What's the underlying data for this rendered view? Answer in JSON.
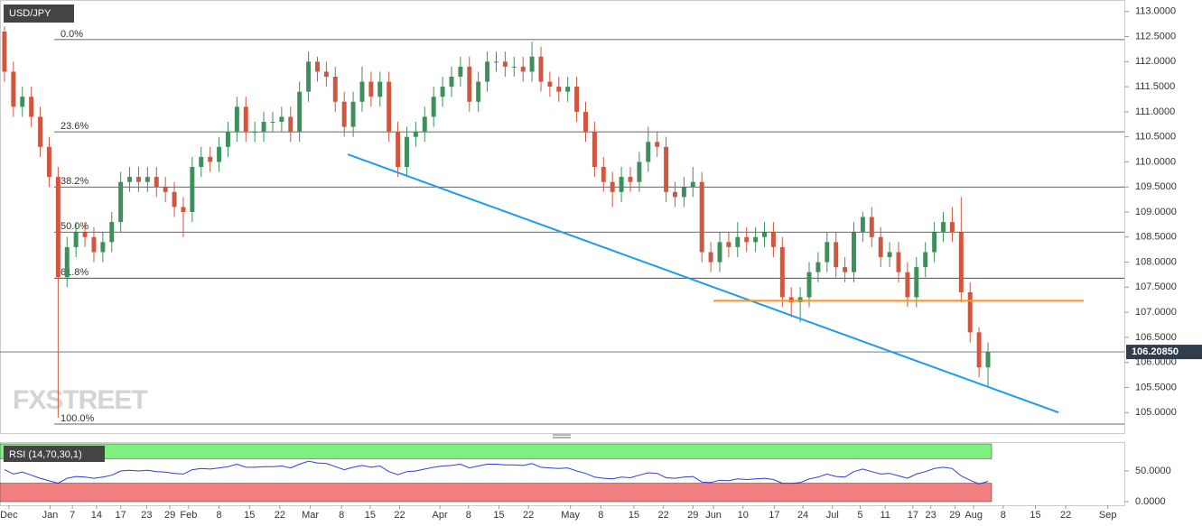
{
  "chart_data": [
    {
      "type": "candlestick",
      "title": "USD/JPY",
      "watermark": "FXSTREET",
      "up_color": "#3d8f5c",
      "down_color": "#d0563f",
      "open": [
        112.6,
        111.8,
        111.1,
        111.3,
        110.9,
        110.3,
        109.7,
        107.7,
        108.3,
        108.6,
        108.5,
        108.2,
        108.4,
        108.8,
        109.6,
        109.7,
        109.6,
        109.7,
        109.5,
        109.4,
        109.1,
        109.0,
        109.9,
        110.1,
        110.0,
        110.3,
        110.6,
        111.1,
        110.6,
        110.6,
        110.8,
        110.8,
        110.9,
        110.6,
        111.4,
        112.0,
        111.8,
        111.7,
        111.2,
        110.7,
        111.2,
        111.6,
        111.3,
        111.6,
        110.6,
        109.9,
        110.5,
        110.6,
        110.9,
        111.3,
        111.5,
        111.7,
        111.9,
        111.2,
        111.6,
        112.0,
        112.0,
        111.9,
        111.9,
        111.8,
        112.1,
        111.6,
        111.5,
        111.4,
        111.5,
        111.0,
        110.6,
        109.9,
        109.6,
        109.4,
        109.7,
        109.6,
        110.0,
        110.4,
        110.3,
        109.4,
        109.3,
        109.5,
        109.6,
        108.2,
        108.0,
        108.4,
        108.3,
        108.5,
        108.4,
        108.5,
        108.6,
        108.3,
        107.3,
        107.2,
        107.3,
        107.8,
        108.0,
        108.4,
        107.9,
        107.8,
        108.6,
        108.9,
        108.5,
        108.1,
        108.2,
        107.8,
        107.3,
        107.9,
        108.2,
        108.6,
        108.8,
        108.6,
        107.4,
        106.6,
        105.9
      ],
      "high": [
        112.7,
        112.0,
        111.5,
        111.5,
        111.1,
        110.5,
        109.9,
        108.5,
        108.8,
        108.8,
        108.7,
        108.6,
        109.0,
        109.8,
        109.9,
        109.9,
        109.9,
        109.9,
        109.7,
        109.6,
        109.3,
        110.1,
        110.3,
        110.3,
        110.5,
        110.8,
        111.3,
        111.3,
        110.8,
        111.0,
        111.0,
        111.1,
        111.1,
        111.6,
        112.2,
        112.1,
        112.0,
        111.9,
        111.4,
        111.4,
        111.9,
        111.8,
        111.8,
        111.8,
        110.8,
        110.7,
        110.8,
        111.1,
        111.5,
        111.7,
        111.9,
        112.1,
        112.1,
        111.8,
        112.2,
        112.2,
        112.2,
        112.1,
        112.1,
        112.4,
        112.3,
        111.8,
        111.7,
        111.7,
        111.7,
        111.2,
        110.8,
        110.1,
        109.8,
        109.9,
        109.9,
        110.2,
        110.7,
        110.6,
        110.5,
        109.6,
        109.7,
        109.9,
        109.8,
        108.4,
        108.6,
        108.6,
        108.8,
        108.7,
        108.7,
        108.8,
        108.8,
        108.5,
        107.5,
        107.5,
        108.0,
        108.2,
        108.6,
        108.6,
        108.1,
        108.8,
        109.0,
        109.1,
        108.7,
        108.4,
        108.4,
        108.0,
        108.1,
        108.4,
        108.8,
        109.0,
        109.1,
        109.3,
        107.6,
        106.7,
        106.4
      ],
      "low": [
        111.6,
        110.9,
        110.9,
        110.7,
        110.1,
        109.5,
        104.9,
        107.5,
        108.1,
        108.3,
        108.0,
        108.0,
        108.2,
        108.6,
        109.4,
        109.4,
        109.4,
        109.3,
        109.2,
        108.9,
        108.5,
        108.8,
        109.7,
        109.8,
        109.8,
        110.1,
        110.4,
        110.4,
        110.4,
        110.4,
        110.6,
        110.6,
        110.4,
        110.4,
        111.2,
        111.6,
        111.5,
        111.0,
        110.5,
        110.5,
        111.0,
        111.1,
        111.1,
        110.4,
        109.7,
        109.7,
        110.3,
        110.4,
        110.7,
        111.1,
        111.3,
        111.5,
        111.0,
        111.0,
        111.4,
        111.8,
        111.7,
        111.7,
        111.6,
        111.6,
        111.4,
        111.3,
        111.2,
        111.2,
        110.8,
        110.4,
        109.7,
        109.4,
        109.1,
        109.2,
        109.4,
        109.4,
        109.8,
        110.1,
        109.2,
        109.1,
        109.1,
        109.3,
        108.0,
        107.8,
        107.8,
        108.1,
        108.1,
        108.2,
        108.2,
        108.3,
        108.1,
        107.1,
        106.9,
        106.8,
        107.1,
        107.6,
        107.8,
        107.7,
        107.6,
        107.6,
        108.4,
        108.3,
        107.9,
        107.9,
        107.6,
        107.1,
        107.1,
        107.7,
        108.0,
        108.4,
        108.4,
        107.2,
        106.4,
        105.7,
        105.5
      ],
      "close": [
        111.8,
        111.1,
        111.3,
        110.9,
        110.3,
        109.7,
        107.7,
        108.3,
        108.6,
        108.5,
        108.2,
        108.4,
        108.8,
        109.6,
        109.7,
        109.6,
        109.7,
        109.5,
        109.4,
        109.1,
        109.0,
        109.9,
        110.1,
        110.0,
        110.3,
        110.6,
        111.1,
        110.6,
        110.6,
        110.8,
        110.8,
        110.9,
        110.6,
        111.4,
        112.0,
        111.8,
        111.7,
        111.2,
        110.7,
        111.2,
        111.6,
        111.3,
        111.6,
        110.6,
        109.9,
        110.5,
        110.6,
        110.9,
        111.3,
        111.5,
        111.7,
        111.9,
        111.2,
        111.6,
        112.0,
        112.0,
        111.9,
        111.9,
        111.8,
        112.1,
        111.6,
        111.5,
        111.4,
        111.5,
        111.0,
        110.6,
        109.9,
        109.6,
        109.4,
        109.7,
        109.6,
        110.0,
        110.4,
        110.3,
        109.4,
        109.3,
        109.5,
        109.6,
        108.2,
        108.0,
        108.4,
        108.3,
        108.5,
        108.4,
        108.5,
        108.6,
        108.3,
        107.3,
        107.2,
        107.3,
        107.8,
        108.0,
        108.4,
        107.9,
        107.8,
        108.6,
        108.9,
        108.5,
        108.1,
        108.2,
        107.8,
        107.3,
        107.9,
        108.2,
        108.6,
        108.8,
        108.6,
        107.4,
        106.6,
        105.9,
        106.2
      ],
      "xlim": [
        -0.5,
        125.25
      ],
      "xticks": [
        {
          "value": 0.5,
          "label": "Dec"
        },
        {
          "value": 5.1,
          "label": "Jan"
        },
        {
          "value": 7.6,
          "label": "7"
        },
        {
          "value": 10.3,
          "label": "14"
        },
        {
          "value": 13.0,
          "label": "17"
        },
        {
          "value": 15.9,
          "label": "23"
        },
        {
          "value": 18.5,
          "label": "29"
        },
        {
          "value": 20.6,
          "label": "Feb"
        },
        {
          "value": 24.0,
          "label": "8"
        },
        {
          "value": 27.4,
          "label": "15"
        },
        {
          "value": 30.8,
          "label": "22"
        },
        {
          "value": 34.2,
          "label": "Mar"
        },
        {
          "value": 37.7,
          "label": "8"
        },
        {
          "value": 40.9,
          "label": "15"
        },
        {
          "value": 44.2,
          "label": "22"
        },
        {
          "value": 48.7,
          "label": "Apr"
        },
        {
          "value": 51.9,
          "label": "8"
        },
        {
          "value": 55.3,
          "label": "15"
        },
        {
          "value": 58.6,
          "label": "22"
        },
        {
          "value": 63.3,
          "label": "May"
        },
        {
          "value": 66.7,
          "label": "8"
        },
        {
          "value": 70.4,
          "label": "15"
        },
        {
          "value": 73.7,
          "label": "22"
        },
        {
          "value": 77.0,
          "label": "29"
        },
        {
          "value": 79.3,
          "label": "Jun"
        },
        {
          "value": 82.6,
          "label": "10"
        },
        {
          "value": 86.1,
          "label": "17"
        },
        {
          "value": 89.3,
          "label": "24"
        },
        {
          "value": 92.6,
          "label": "Jul"
        },
        {
          "value": 95.7,
          "label": "5"
        },
        {
          "value": 98.5,
          "label": "11"
        },
        {
          "value": 101.6,
          "label": "17"
        },
        {
          "value": 103.6,
          "label": "23"
        },
        {
          "value": 106.3,
          "label": "29"
        },
        {
          "value": 108.4,
          "label": "Aug"
        },
        {
          "value": 111.7,
          "label": "8"
        },
        {
          "value": 115.3,
          "label": "15"
        },
        {
          "value": 118.7,
          "label": "22"
        },
        {
          "value": 123.4,
          "label": "Sep"
        }
      ],
      "ylim": [
        104.59,
        113.23
      ],
      "yticks": [
        {
          "value": 113,
          "label": "113.0000"
        },
        {
          "value": 112.5,
          "label": "112.5000"
        },
        {
          "value": 112,
          "label": "112.0000"
        },
        {
          "value": 111.5,
          "label": "111.5000"
        },
        {
          "value": 111,
          "label": "111.0000"
        },
        {
          "value": 110.5,
          "label": "110.5000"
        },
        {
          "value": 110,
          "label": "110.0000"
        },
        {
          "value": 109.5,
          "label": "109.5000"
        },
        {
          "value": 109,
          "label": "109.0000"
        },
        {
          "value": 108.5,
          "label": "108.5000"
        },
        {
          "value": 108,
          "label": "108.0000"
        },
        {
          "value": 107.5,
          "label": "107.5000"
        },
        {
          "value": 107,
          "label": "107.0000"
        },
        {
          "value": 106.5,
          "label": "106.5000"
        },
        {
          "value": 106,
          "label": "106.0000"
        },
        {
          "value": 105.5,
          "label": "105.5000"
        },
        {
          "value": 105,
          "label": "105.0000"
        }
      ],
      "fib_levels": [
        {
          "label": "0.0%",
          "value": 112.44
        },
        {
          "label": "23.6%",
          "value": 110.6
        },
        {
          "label": "38.2%",
          "value": 109.5
        },
        {
          "label": "50.0%",
          "value": 108.6
        },
        {
          "label": "61.8%",
          "value": 107.68
        },
        {
          "label": "100.0%",
          "value": 104.77
        }
      ],
      "trendlines": [
        {
          "color": "#1e9bef",
          "points": [
            [
              38.4,
              110.15
            ],
            [
              117.9,
              105.0
            ]
          ]
        },
        {
          "color": "#f7931e",
          "points": [
            [
              79.3,
              107.23
            ],
            [
              120.7,
              107.23
            ]
          ]
        }
      ],
      "last_price": {
        "value": 106.2085,
        "label": "106.20850"
      }
    },
    {
      "type": "line",
      "title": "RSI (14,70,30,1)",
      "color": "#2c3ee0",
      "upper": 70,
      "lower": 30,
      "upper_color": "#7ef07e",
      "lower_color": "#f07f7f",
      "values": [
        52,
        45,
        48,
        43,
        38,
        34,
        30,
        38,
        41,
        40,
        38,
        40,
        43,
        50,
        51,
        50,
        51,
        49,
        48,
        46,
        45,
        52,
        54,
        53,
        55,
        57,
        61,
        56,
        56,
        57,
        57,
        58,
        55,
        61,
        66,
        63,
        62,
        57,
        52,
        56,
        59,
        56,
        58,
        49,
        44,
        49,
        50,
        53,
        56,
        58,
        59,
        61,
        55,
        58,
        61,
        61,
        60,
        60,
        59,
        62,
        56,
        55,
        54,
        55,
        50,
        46,
        40,
        38,
        37,
        40,
        39,
        43,
        47,
        46,
        39,
        38,
        40,
        41,
        32,
        31,
        35,
        34,
        37,
        36,
        37,
        38,
        36,
        30,
        30,
        31,
        37,
        40,
        45,
        41,
        40,
        49,
        53,
        49,
        45,
        46,
        42,
        38,
        45,
        49,
        54,
        56,
        54,
        42,
        35,
        29,
        33
      ],
      "ylim": [
        -5.9,
        97
      ],
      "yticks": [
        {
          "value": 50,
          "label": "50.0000"
        },
        {
          "value": 0,
          "label": "0.0000"
        }
      ]
    }
  ]
}
